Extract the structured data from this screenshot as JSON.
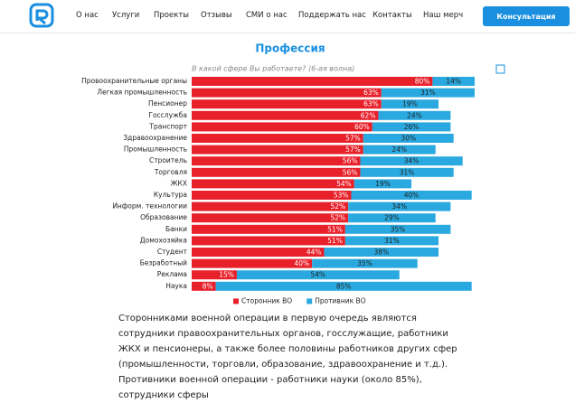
{
  "nav": {
    "items": [
      "О нас",
      "Услуги",
      "Проекты",
      "Отзывы",
      "СМИ о нас",
      "Поддержать нас",
      "Контакты",
      "Наш мерч"
    ],
    "button": "Консультация"
  },
  "chart_data": {
    "type": "stacked-bar-horizontal",
    "title": "Профессия",
    "subtitle": "В какой сфере Вы работаете? (6-ая волна)",
    "categories": [
      "Провоохранительные органы",
      "Легкая промышленность",
      "Пенсионер",
      "Госслужба",
      "Транспорт",
      "Здравоохранение",
      "Промышленность",
      "Строитель",
      "Торговля",
      "ЖКХ",
      "Культура",
      "Информ. технологии",
      "Образование",
      "Банки",
      "Домохозяйка",
      "Студент",
      "Безработный",
      "Реклама",
      "Наука"
    ],
    "series": [
      {
        "name": "Сторонник ВО",
        "color": "#e8202a",
        "values": [
          80,
          63,
          63,
          62,
          60,
          57,
          57,
          56,
          56,
          54,
          53,
          52,
          52,
          51,
          51,
          44,
          40,
          15,
          8
        ],
        "value_labels": [
          "80%",
          "63%",
          "63%",
          "62%",
          "60%",
          "57%",
          "57%",
          "56%",
          "56%",
          "54%",
          "53%",
          "52%",
          "52%",
          "51%",
          "51%",
          "44%",
          "40%",
          "15%",
          "8%"
        ]
      },
      {
        "name": "Противник ВО",
        "color": "#2aa9e0",
        "values": [
          14,
          31,
          19,
          24,
          26,
          30,
          24,
          34,
          31,
          19,
          40,
          34,
          29,
          35,
          31,
          38,
          35,
          54,
          85
        ],
        "value_labels": [
          "14%",
          "31%",
          "19%",
          "24%",
          "26%",
          "30%",
          "24%",
          "34%",
          "31%",
          "19%",
          "40%",
          "34%",
          "29%",
          "35%",
          "31%",
          "38%",
          "35%",
          "54%",
          "85%"
        ]
      }
    ],
    "xlim": [
      0,
      100
    ],
    "legend": "bottom"
  },
  "text": [
    "Сторонниками военной операции в первую очередь являются сотрудники правоохранительных органов, госслужащие, работники ЖКХ и пенсионеры, а также более половины работников других сфер (промышленности, торговли, образование, здравоохранение и т.д.).",
    "Противники военной операции - работники науки (около 85%), сотрудники сферы"
  ]
}
